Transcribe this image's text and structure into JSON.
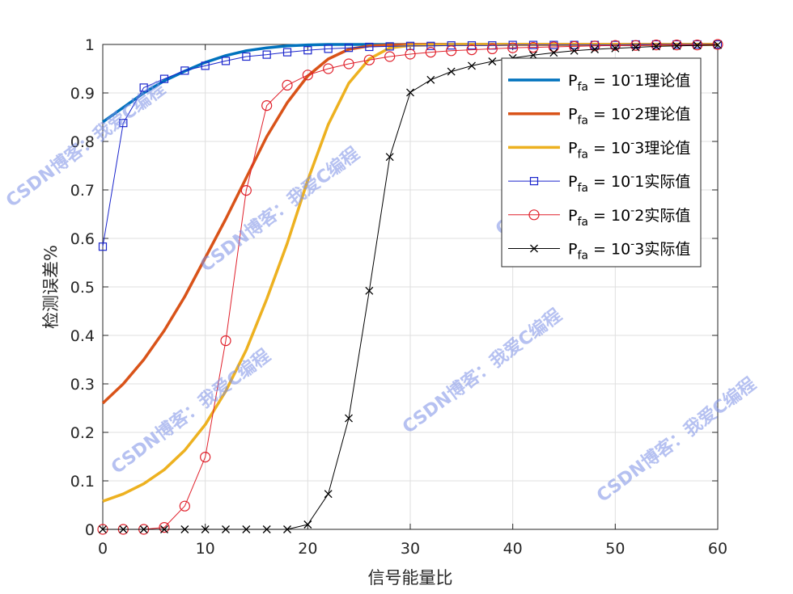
{
  "chart_data": {
    "type": "line",
    "xlabel": "信号能量比",
    "ylabel": "检测误差%",
    "xlim": [
      0,
      60
    ],
    "ylim": [
      0,
      1
    ],
    "xticks": [
      0,
      10,
      20,
      30,
      40,
      50,
      60
    ],
    "yticks": [
      0,
      0.1,
      0.2,
      0.3,
      0.4,
      0.5,
      0.6,
      0.7,
      0.8,
      0.9,
      1
    ],
    "grid": true,
    "legend_position": "top-right",
    "series": [
      {
        "legend": {
          "pre": "P",
          "sub": "fa",
          "post": " = 10",
          "sup": "-",
          "tail": "1理论值"
        },
        "color": "#0072bd",
        "marker": "none",
        "width": 3.5,
        "x": [
          0,
          2,
          4,
          6,
          8,
          10,
          12,
          14,
          16,
          18,
          20,
          22,
          24,
          26,
          28,
          30,
          35,
          40,
          50,
          60
        ],
        "y": [
          0.84,
          0.87,
          0.9,
          0.925,
          0.945,
          0.963,
          0.977,
          0.987,
          0.993,
          0.997,
          0.999,
          1.0,
          1.0,
          1.0,
          1.0,
          1.0,
          1.0,
          1.0,
          1.0,
          1.0
        ]
      },
      {
        "legend": {
          "pre": "P",
          "sub": "fa",
          "post": " = 10",
          "sup": "-",
          "tail": "2理论值"
        },
        "color": "#d95319",
        "marker": "none",
        "width": 3.5,
        "x": [
          0,
          2,
          4,
          6,
          8,
          10,
          12,
          14,
          16,
          18,
          20,
          22,
          24,
          26,
          28,
          30,
          35,
          40,
          50,
          60
        ],
        "y": [
          0.26,
          0.3,
          0.35,
          0.41,
          0.48,
          0.56,
          0.64,
          0.725,
          0.81,
          0.88,
          0.935,
          0.97,
          0.99,
          0.997,
          0.999,
          1.0,
          1.0,
          1.0,
          1.0,
          1.0
        ]
      },
      {
        "legend": {
          "pre": "P",
          "sub": "fa",
          "post": " = 10",
          "sup": "-",
          "tail": "3理论值"
        },
        "color": "#edb120",
        "marker": "none",
        "width": 3.5,
        "x": [
          0,
          2,
          4,
          6,
          8,
          10,
          12,
          14,
          16,
          18,
          20,
          22,
          24,
          26,
          28,
          30,
          35,
          40,
          50,
          60
        ],
        "y": [
          0.058,
          0.073,
          0.094,
          0.123,
          0.163,
          0.216,
          0.285,
          0.37,
          0.475,
          0.59,
          0.72,
          0.835,
          0.92,
          0.97,
          0.993,
          0.998,
          1.0,
          1.0,
          1.0,
          1.0
        ]
      },
      {
        "legend": {
          "pre": "P",
          "sub": "fa",
          "post": " = 10",
          "sup": "-",
          "tail": "1实际值"
        },
        "color": "#1a25cc",
        "marker": "square",
        "width": 1,
        "x": [
          0,
          2,
          4,
          6,
          8,
          10,
          12,
          14,
          16,
          18,
          20,
          22,
          24,
          26,
          28,
          30,
          32,
          34,
          36,
          38,
          40,
          42,
          44,
          46,
          48,
          50,
          52,
          54,
          56,
          58,
          60
        ],
        "y": [
          0.583,
          0.838,
          0.911,
          0.929,
          0.946,
          0.956,
          0.966,
          0.975,
          0.979,
          0.984,
          0.988,
          0.991,
          0.993,
          0.995,
          0.996,
          0.997,
          0.997,
          0.998,
          0.998,
          0.998,
          0.999,
          0.999,
          0.999,
          0.999,
          0.999,
          0.999,
          1.0,
          1.0,
          1.0,
          1.0,
          1.0
        ]
      },
      {
        "legend": {
          "pre": "P",
          "sub": "fa",
          "post": " = 10",
          "sup": "-",
          "tail": "2实际值"
        },
        "color": "#e0202b",
        "marker": "circle",
        "width": 1,
        "x": [
          0,
          2,
          4,
          6,
          8,
          10,
          12,
          14,
          16,
          18,
          20,
          22,
          24,
          26,
          28,
          30,
          32,
          34,
          36,
          38,
          40,
          42,
          44,
          46,
          48,
          50,
          52,
          54,
          56,
          58,
          60
        ],
        "y": [
          0.0,
          0.0,
          0.0,
          0.004,
          0.048,
          0.149,
          0.389,
          0.699,
          0.874,
          0.916,
          0.937,
          0.95,
          0.96,
          0.968,
          0.975,
          0.98,
          0.984,
          0.987,
          0.989,
          0.991,
          0.993,
          0.994,
          0.995,
          0.996,
          0.997,
          0.998,
          0.998,
          0.999,
          0.999,
          0.999,
          1.0
        ]
      },
      {
        "legend": {
          "pre": "P",
          "sub": "fa",
          "post": " = 10",
          "sup": "-",
          "tail": "3实际值"
        },
        "color": "#000000",
        "marker": "x",
        "width": 1,
        "x": [
          0,
          2,
          4,
          6,
          8,
          10,
          12,
          14,
          16,
          18,
          20,
          22,
          24,
          26,
          28,
          30,
          32,
          34,
          36,
          38,
          40,
          42,
          44,
          46,
          48,
          50,
          52,
          54,
          56,
          58,
          60
        ],
        "y": [
          0.0,
          0.0,
          0.0,
          0.0,
          0.0,
          0.0,
          0.0,
          0.0,
          0.0,
          0.0,
          0.01,
          0.073,
          0.229,
          0.492,
          0.768,
          0.901,
          0.927,
          0.944,
          0.956,
          0.965,
          0.972,
          0.978,
          0.983,
          0.987,
          0.99,
          0.992,
          0.994,
          0.996,
          0.997,
          0.998,
          0.999
        ]
      }
    ]
  },
  "watermark": {
    "text": "CSDN博客：我爱C编程"
  }
}
